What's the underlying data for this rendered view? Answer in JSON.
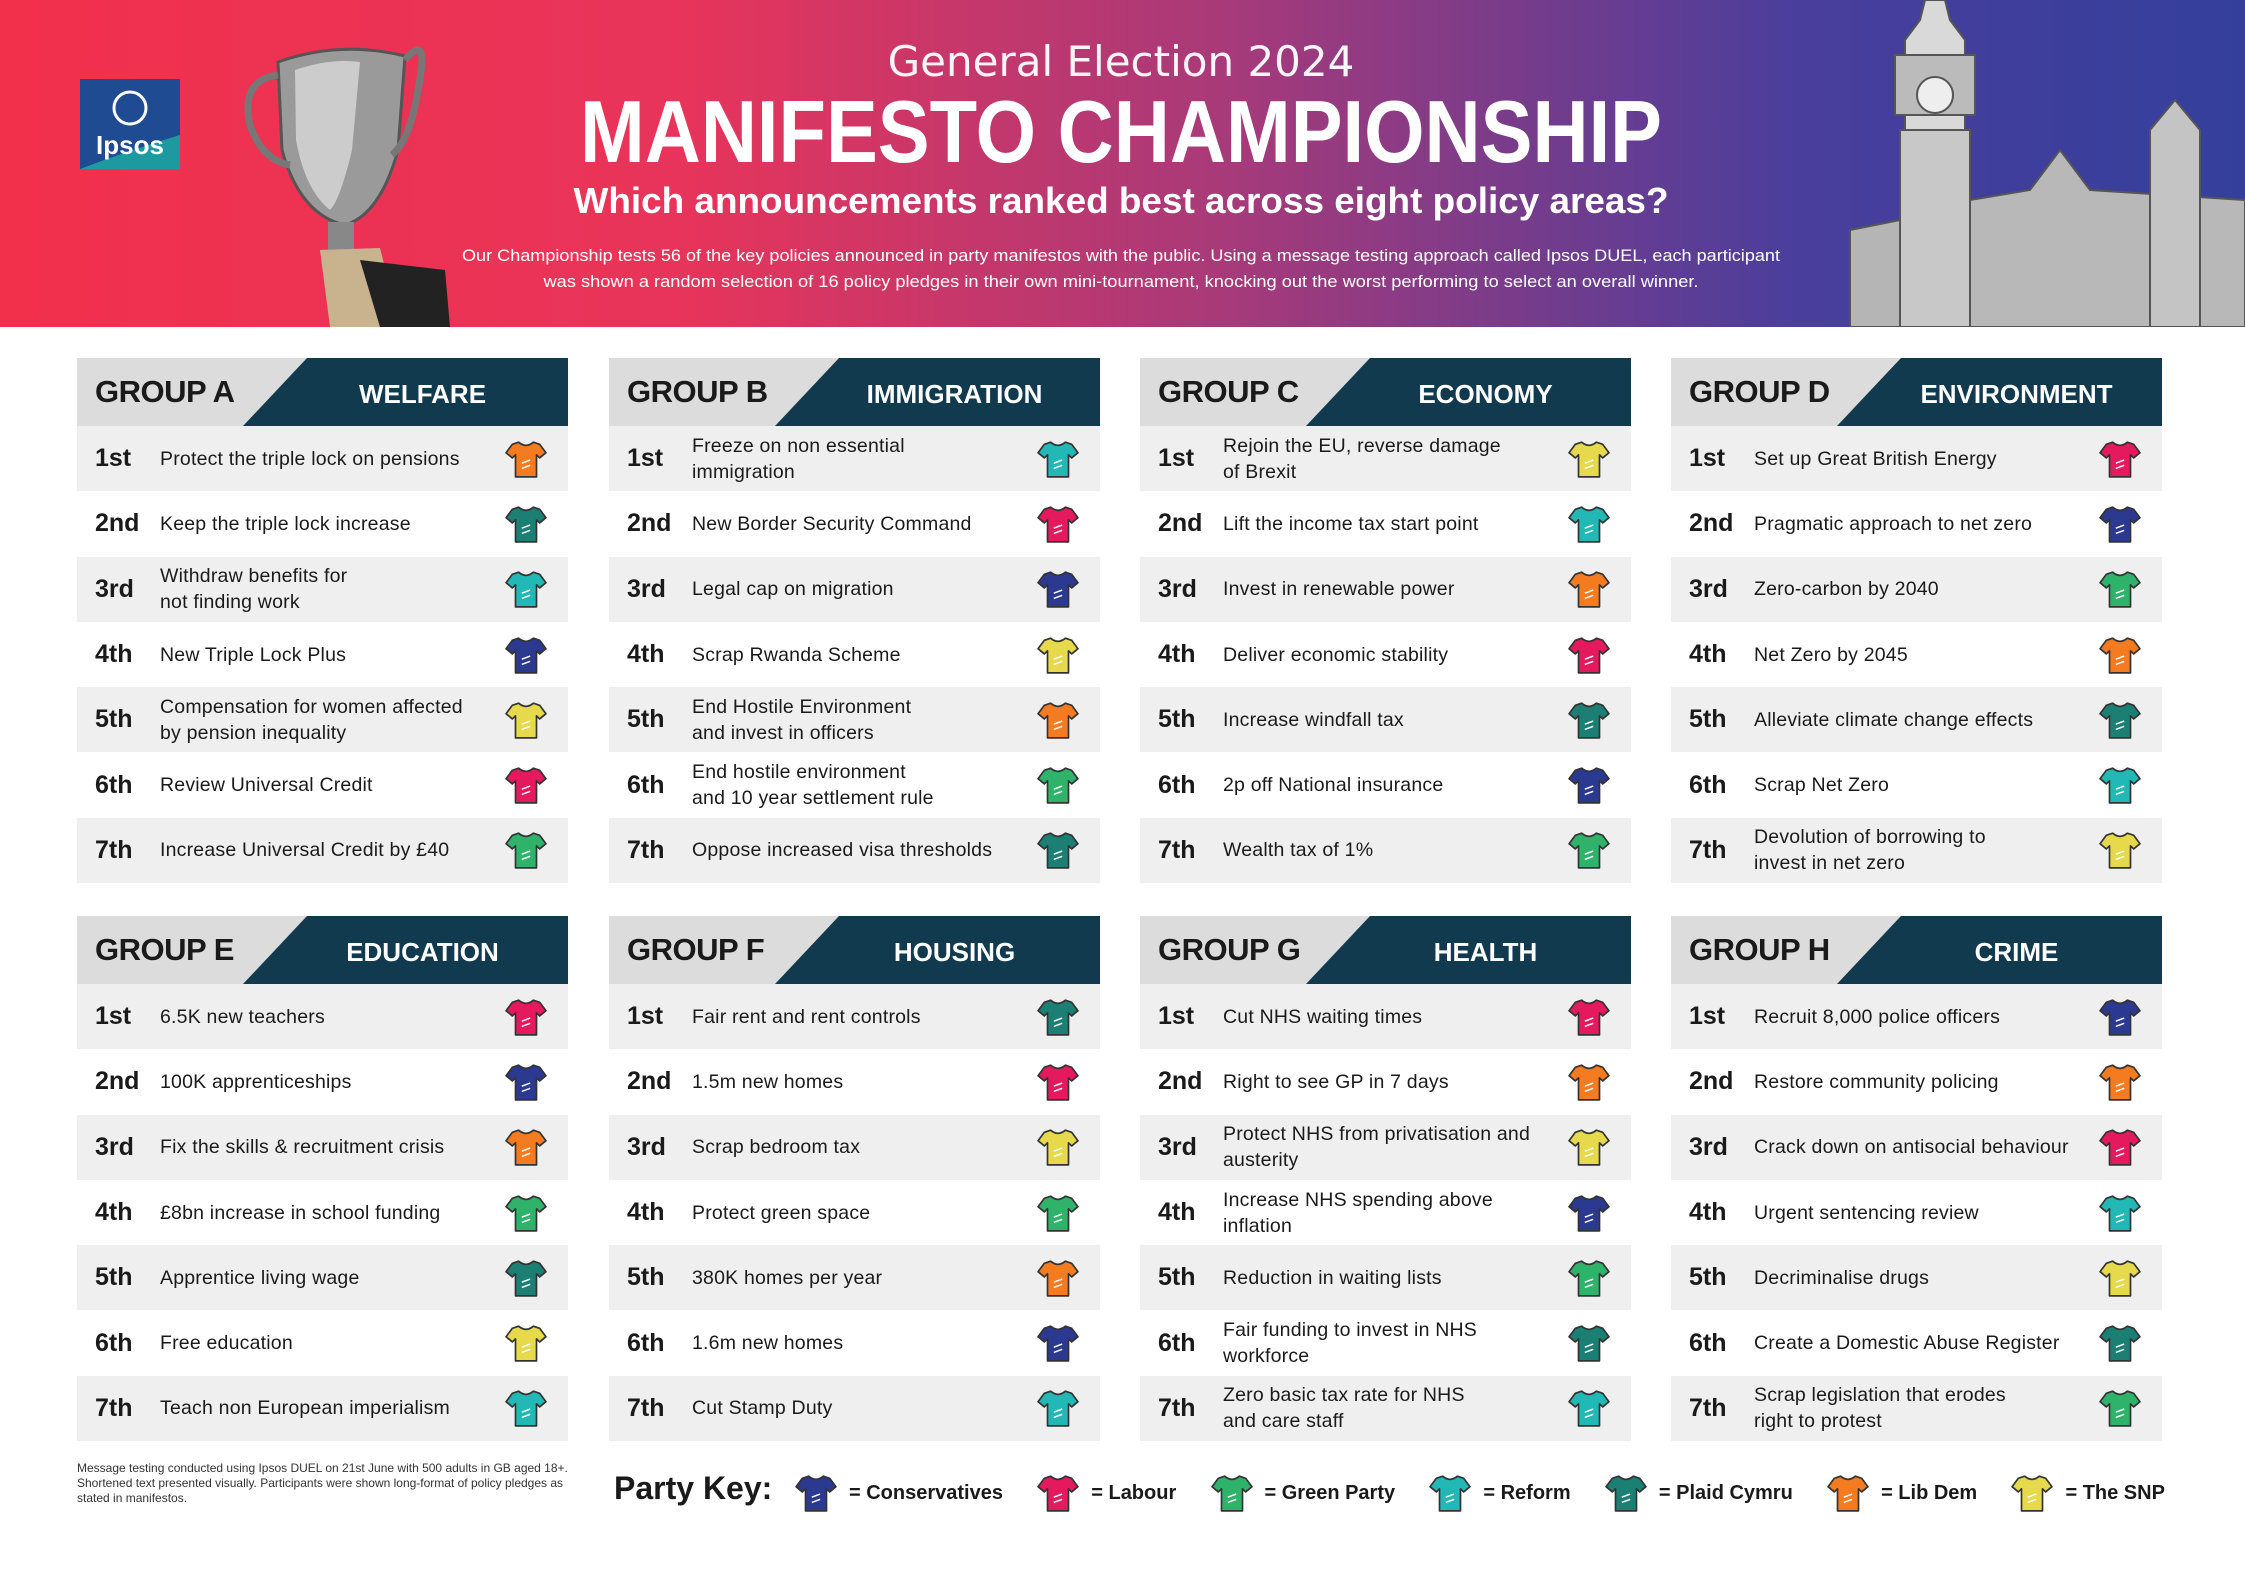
{
  "header": {
    "logo": "Ipsos",
    "eyebrow": "General Election 2024",
    "title": "MANIFESTO CHAMPIONSHIP",
    "subtitle": "Which announcements ranked best across eight policy areas?",
    "intro": [
      "Our Championship tests 56 of the key policies announced in party manifestos with the public. Using a message testing approach called Ipsos DUEL, each participant",
      "was shown a random selection of 16 policy pledges in their own mini-tournament, knocking out the worst performing to select an overall winner."
    ]
  },
  "groups": [
    {
      "label": "GROUP A",
      "topic": "WELFARE",
      "items": [
        {
          "rank": "1st",
          "text": "Protect the triple lock on pensions",
          "color": "#f47b20"
        },
        {
          "rank": "2nd",
          "text": "Keep the triple lock increase",
          "color": "#1b7f74"
        },
        {
          "rank": "3rd",
          "text": "Withdraw benefits for\nnot finding work",
          "color": "#22b8b5"
        },
        {
          "rank": "4th",
          "text": "New Triple Lock Plus",
          "color": "#2b3990"
        },
        {
          "rank": "5th",
          "text": "Compensation for women affected\nby pension inequality",
          "color": "#e6da4c"
        },
        {
          "rank": "6th",
          "text": "Review Universal Credit",
          "color": "#e5195e"
        },
        {
          "rank": "7th",
          "text": "Increase Universal Credit by £40",
          "color": "#2fb36b"
        }
      ]
    },
    {
      "label": "GROUP B",
      "topic": "IMMIGRATION",
      "items": [
        {
          "rank": "1st",
          "text": "Freeze on non essential\nimmigration",
          "color": "#22b8b5"
        },
        {
          "rank": "2nd",
          "text": "New Border Security Command",
          "color": "#e5195e"
        },
        {
          "rank": "3rd",
          "text": "Legal cap on migration",
          "color": "#2b3990"
        },
        {
          "rank": "4th",
          "text": "Scrap Rwanda Scheme",
          "color": "#e6da4c"
        },
        {
          "rank": "5th",
          "text": "End Hostile Environment\nand invest in officers",
          "color": "#f47b20"
        },
        {
          "rank": "6th",
          "text": "End hostile environment\nand 10 year settlement rule",
          "color": "#2fb36b"
        },
        {
          "rank": "7th",
          "text": "Oppose increased visa thresholds",
          "color": "#1b7f74"
        }
      ]
    },
    {
      "label": "GROUP C",
      "topic": "ECONOMY",
      "items": [
        {
          "rank": "1st",
          "text": "Rejoin the EU, reverse damage\nof Brexit",
          "color": "#e6da4c"
        },
        {
          "rank": "2nd",
          "text": "Lift the income tax start point",
          "color": "#22b8b5"
        },
        {
          "rank": "3rd",
          "text": "Invest in renewable power",
          "color": "#f47b20"
        },
        {
          "rank": "4th",
          "text": "Deliver economic stability",
          "color": "#e5195e"
        },
        {
          "rank": "5th",
          "text": "Increase windfall tax",
          "color": "#1b7f74"
        },
        {
          "rank": "6th",
          "text": "2p off National insurance",
          "color": "#2b3990"
        },
        {
          "rank": "7th",
          "text": "Wealth tax of 1%",
          "color": "#2fb36b"
        }
      ]
    },
    {
      "label": "GROUP D",
      "topic": "ENVIRONMENT",
      "items": [
        {
          "rank": "1st",
          "text": "Set up Great British Energy",
          "color": "#e5195e"
        },
        {
          "rank": "2nd",
          "text": "Pragmatic approach to net zero",
          "color": "#2b3990"
        },
        {
          "rank": "3rd",
          "text": "Zero-carbon by 2040",
          "color": "#2fb36b"
        },
        {
          "rank": "4th",
          "text": "Net Zero by 2045",
          "color": "#f47b20"
        },
        {
          "rank": "5th",
          "text": "Alleviate climate change effects",
          "color": "#1b7f74"
        },
        {
          "rank": "6th",
          "text": "Scrap Net Zero",
          "color": "#22b8b5"
        },
        {
          "rank": "7th",
          "text": "Devolution of borrowing to\ninvest in net zero",
          "color": "#e6da4c"
        }
      ]
    },
    {
      "label": "GROUP E",
      "topic": "EDUCATION",
      "items": [
        {
          "rank": "1st",
          "text": "6.5K new teachers",
          "color": "#e5195e"
        },
        {
          "rank": "2nd",
          "text": "100K apprenticeships",
          "color": "#2b3990"
        },
        {
          "rank": "3rd",
          "text": "Fix the skills & recruitment crisis",
          "color": "#f47b20"
        },
        {
          "rank": "4th",
          "text": "£8bn increase in school funding",
          "color": "#2fb36b"
        },
        {
          "rank": "5th",
          "text": "Apprentice living wage",
          "color": "#1b7f74"
        },
        {
          "rank": "6th",
          "text": "Free education",
          "color": "#e6da4c"
        },
        {
          "rank": "7th",
          "text": "Teach non European imperialism",
          "color": "#22b8b5"
        }
      ]
    },
    {
      "label": "GROUP F",
      "topic": "HOUSING",
      "items": [
        {
          "rank": "1st",
          "text": "Fair rent and rent controls",
          "color": "#1b7f74"
        },
        {
          "rank": "2nd",
          "text": "1.5m new homes",
          "color": "#e5195e"
        },
        {
          "rank": "3rd",
          "text": "Scrap bedroom tax",
          "color": "#e6da4c"
        },
        {
          "rank": "4th",
          "text": "Protect green space",
          "color": "#2fb36b"
        },
        {
          "rank": "5th",
          "text": "380K homes per year",
          "color": "#f47b20"
        },
        {
          "rank": "6th",
          "text": "1.6m new homes",
          "color": "#2b3990"
        },
        {
          "rank": "7th",
          "text": "Cut Stamp Duty",
          "color": "#22b8b5"
        }
      ]
    },
    {
      "label": "GROUP G",
      "topic": "HEALTH",
      "items": [
        {
          "rank": "1st",
          "text": "Cut NHS waiting times",
          "color": "#e5195e"
        },
        {
          "rank": "2nd",
          "text": "Right to see GP in 7 days",
          "color": "#f47b20"
        },
        {
          "rank": "3rd",
          "text": "Protect NHS from privatisation and\nausterity",
          "color": "#e6da4c"
        },
        {
          "rank": "4th",
          "text": "Increase NHS spending above\ninflation",
          "color": "#2b3990"
        },
        {
          "rank": "5th",
          "text": "Reduction in waiting lists",
          "color": "#2fb36b"
        },
        {
          "rank": "6th",
          "text": "Fair funding to invest in NHS\nworkforce",
          "color": "#1b7f74"
        },
        {
          "rank": "7th",
          "text": "Zero basic tax rate for NHS\nand care staff",
          "color": "#22b8b5"
        }
      ]
    },
    {
      "label": "GROUP H",
      "topic": "CRIME",
      "items": [
        {
          "rank": "1st",
          "text": "Recruit 8,000 police officers",
          "color": "#2b3990"
        },
        {
          "rank": "2nd",
          "text": "Restore community policing",
          "color": "#f47b20"
        },
        {
          "rank": "3rd",
          "text": "Crack down on antisocial behaviour",
          "color": "#e5195e"
        },
        {
          "rank": "4th",
          "text": "Urgent sentencing review",
          "color": "#22b8b5"
        },
        {
          "rank": "5th",
          "text": "Decriminalise drugs",
          "color": "#e6da4c"
        },
        {
          "rank": "6th",
          "text": "Create a Domestic Abuse Register",
          "color": "#1b7f74"
        },
        {
          "rank": "7th",
          "text": "Scrap legislation that erodes\nright to protest",
          "color": "#2fb36b"
        }
      ]
    }
  ],
  "footnote": "Message testing conducted using Ipsos DUEL on 21st June with 500 adults in GB aged 18+. Shortened text presented visually. Participants were shown long-format of policy pledges as stated in manifestos.",
  "key": {
    "label": "Party Key:",
    "parties": [
      {
        "name": "= Conservatives",
        "color": "#2b3990"
      },
      {
        "name": "= Labour",
        "color": "#e5195e"
      },
      {
        "name": "= Green Party",
        "color": "#2fb36b"
      },
      {
        "name": "= Reform",
        "color": "#22b8b5"
      },
      {
        "name": "= Plaid Cymru",
        "color": "#1b7f74"
      },
      {
        "name": "= Lib Dem",
        "color": "#f47b20"
      },
      {
        "name": "= The SNP",
        "color": "#e6da4c"
      }
    ]
  }
}
